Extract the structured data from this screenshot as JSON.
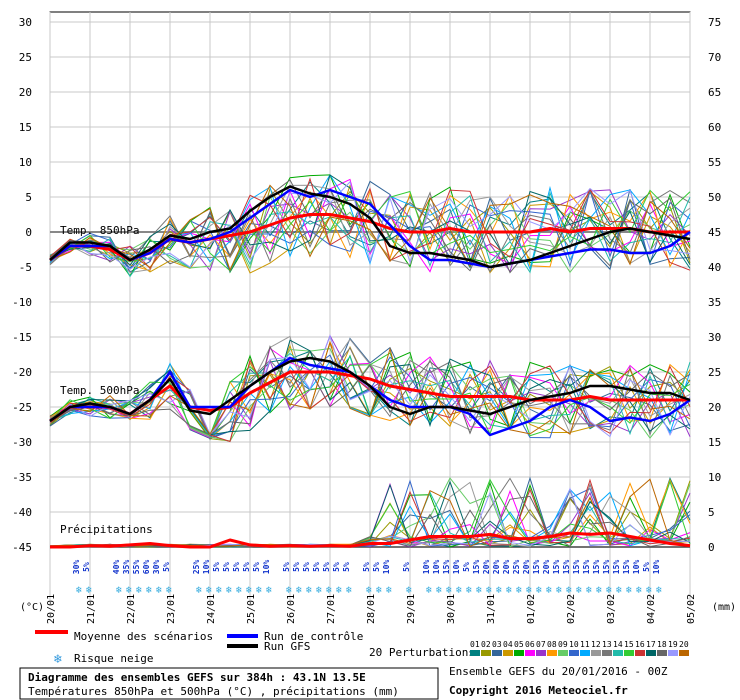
{
  "chart_data": {
    "type": "line",
    "title": "Diagramme des ensembles GEFS sur 384h : 43.1N 13.5E",
    "subtitle": "Températures 850hPa et 500hPa (°C) , précipitations (mm)",
    "run_info": "Ensemble GEFS du 20/01/2016 - 00Z",
    "copyright": "Copyright 2016 Meteociel.fr",
    "xlabel": "(°C)",
    "y2label": "(mm)",
    "x_ticks": [
      "20/01",
      "21/01",
      "22/01",
      "23/01",
      "24/01",
      "25/01",
      "26/01",
      "27/01",
      "28/01",
      "29/01",
      "30/01",
      "31/01",
      "01/02",
      "02/02",
      "03/02",
      "04/02",
      "05/02"
    ],
    "y_left_ticks": [
      "30",
      "25",
      "20",
      "15",
      "10",
      "5",
      "0",
      "-5",
      "-10",
      "-15",
      "-20",
      "-25",
      "-30",
      "-35",
      "-40",
      "-45"
    ],
    "y_right_ticks": [
      "75",
      "70",
      "65",
      "60",
      "55",
      "50",
      "45",
      "40",
      "35",
      "30",
      "25",
      "20",
      "15",
      "10",
      "5",
      "0"
    ],
    "ylim": [
      -45,
      30
    ],
    "y2lim": [
      0,
      75
    ],
    "panel_labels": {
      "t850": "Temp. 850hPa",
      "t500": "Temp. 500hPa",
      "precip": "Précipitations"
    },
    "snow_risk_percent": [
      "30%",
      "5%",
      "40%",
      "35%",
      "55%",
      "60%",
      "30%",
      "5%",
      "25%",
      "10%",
      "5%",
      "5%",
      "5%",
      "5%",
      "5%",
      "10%",
      "5%",
      "5%",
      "5%",
      "5%",
      "5%",
      "5%",
      "5%",
      "5%",
      "5%",
      "10%",
      "5%",
      "10%",
      "10%",
      "15%",
      "10%",
      "5%",
      "15%",
      "20%",
      "20%",
      "20%",
      "25%",
      "20%",
      "15%",
      "20%",
      "15%",
      "15%",
      "15%",
      "15%",
      "15%",
      "15%",
      "15%",
      "15%",
      "10%",
      "5%",
      "10%"
    ],
    "legend": {
      "mean": "Moyenne des scénarios",
      "control": "Run de contrôle",
      "gfs": "Run GFS",
      "snow": "Risque neige",
      "perturbations": "20 Perturbations",
      "perturbation_ids": [
        "01",
        "02",
        "03",
        "04",
        "05",
        "06",
        "07",
        "08",
        "09",
        "10",
        "11",
        "12",
        "13",
        "14",
        "15",
        "16",
        "17",
        "18",
        "19",
        "20"
      ]
    },
    "series": [
      {
        "name": "Moyenne des scénarios (T850)",
        "color": "#ff0000",
        "x": [
          0,
          0.5,
          1,
          1.5,
          2,
          2.5,
          3,
          3.5,
          4,
          4.5,
          5,
          5.5,
          6,
          6.5,
          7,
          7.5,
          8,
          8.5,
          9,
          9.5,
          10,
          10.5,
          11,
          11.5,
          12,
          12.5,
          13,
          13.5,
          14,
          14.5,
          15,
          15.5,
          16
        ],
        "values": [
          -4,
          -2,
          -2,
          -2.5,
          -4,
          -3,
          -1,
          -1.5,
          -1,
          -0.5,
          0,
          1,
          2,
          2.5,
          2.5,
          2,
          1.5,
          0.5,
          0,
          0,
          0.5,
          0,
          0,
          0,
          0,
          0.5,
          0,
          0.5,
          0.5,
          0.5,
          0,
          0,
          0
        ]
      },
      {
        "name": "Run de contrôle (T850)",
        "color": "#0000ff",
        "x": [
          0,
          0.5,
          1,
          1.5,
          2,
          2.5,
          3,
          3.5,
          4,
          4.5,
          5,
          5.5,
          6,
          6.5,
          7,
          7.5,
          8,
          8.5,
          9,
          9.5,
          10,
          10.5,
          11,
          11.5,
          12,
          12.5,
          13,
          13.5,
          14,
          14.5,
          15,
          15.5,
          16
        ],
        "values": [
          -4,
          -2,
          -2,
          -2,
          -4,
          -3,
          -1,
          -1.5,
          -1,
          0,
          2,
          4,
          6,
          5,
          6,
          5,
          4,
          1,
          -2,
          -4,
          -4,
          -4.5,
          -5,
          -4.5,
          -4,
          -3.5,
          -3,
          -2.5,
          -2.5,
          -3,
          -3,
          -2,
          0
        ]
      },
      {
        "name": "Run GFS (T850)",
        "color": "#000000",
        "x": [
          0,
          0.5,
          1,
          1.5,
          2,
          2.5,
          3,
          3.5,
          4,
          4.5,
          5,
          5.5,
          6,
          6.5,
          7,
          7.5,
          8,
          8.5,
          9,
          9.5,
          10,
          10.5,
          11,
          11.5,
          12,
          12.5,
          13,
          13.5,
          14,
          14.5,
          15,
          15.5,
          16
        ],
        "values": [
          -4,
          -1.5,
          -1.5,
          -2,
          -4,
          -2.5,
          -0.5,
          -1,
          0,
          0.5,
          3,
          5,
          6.5,
          5.5,
          5,
          4,
          2,
          -2,
          -3,
          -3,
          -3.5,
          -4,
          -5,
          -4.5,
          -4,
          -3,
          -2,
          -1,
          0,
          0.5,
          0,
          -0.5,
          -1
        ]
      },
      {
        "name": "Moyenne des scénarios (T500)",
        "color": "#ff0000",
        "x": [
          0,
          0.5,
          1,
          1.5,
          2,
          2.5,
          3,
          3.5,
          4,
          4.5,
          5,
          5.5,
          6,
          6.5,
          7,
          7.5,
          8,
          8.5,
          9,
          9.5,
          10,
          10.5,
          11,
          11.5,
          12,
          12.5,
          13,
          13.5,
          14,
          14.5,
          15,
          15.5,
          16
        ],
        "values": [
          -27,
          -25,
          -25,
          -25,
          -26,
          -24,
          -22,
          -25,
          -25.5,
          -25,
          -23,
          -21.5,
          -20,
          -20,
          -20,
          -20.5,
          -21,
          -22,
          -22.5,
          -23,
          -23.5,
          -23.5,
          -23.5,
          -23.5,
          -24,
          -24,
          -24,
          -23.5,
          -24,
          -24,
          -24,
          -24,
          -24
        ]
      },
      {
        "name": "Run de contrôle (T500)",
        "color": "#0000ff",
        "x": [
          0,
          0.5,
          1,
          1.5,
          2,
          2.5,
          3,
          3.5,
          4,
          4.5,
          5,
          5.5,
          6,
          6.5,
          7,
          7.5,
          8,
          8.5,
          9,
          9.5,
          10,
          10.5,
          11,
          11.5,
          12,
          12.5,
          13,
          13.5,
          14,
          14.5,
          15,
          15.5,
          16
        ],
        "values": [
          -27,
          -25,
          -25,
          -25,
          -26,
          -24,
          -20,
          -25,
          -25,
          -25,
          -22,
          -20,
          -18,
          -19,
          -19.5,
          -20,
          -22,
          -24,
          -25,
          -25,
          -25,
          -26,
          -29,
          -28,
          -27,
          -25,
          -24,
          -25,
          -27,
          -26.5,
          -27,
          -26,
          -24
        ]
      },
      {
        "name": "Run GFS (T500)",
        "color": "#000000",
        "x": [
          0,
          0.5,
          1,
          1.5,
          2,
          2.5,
          3,
          3.5,
          4,
          4.5,
          5,
          5.5,
          6,
          6.5,
          7,
          7.5,
          8,
          8.5,
          9,
          9.5,
          10,
          10.5,
          11,
          11.5,
          12,
          12.5,
          13,
          13.5,
          14,
          14.5,
          15,
          15.5,
          16
        ],
        "values": [
          -27,
          -25,
          -24.5,
          -25,
          -26,
          -24,
          -21,
          -25.5,
          -26,
          -24,
          -22,
          -20,
          -18.5,
          -18,
          -18.5,
          -20,
          -22,
          -25,
          -26,
          -25,
          -25,
          -25.5,
          -26,
          -25,
          -24,
          -23.5,
          -23,
          -22,
          -22,
          -22.5,
          -23,
          -23,
          -24
        ]
      },
      {
        "name": "Moyenne des scénarios (Précipitations)",
        "color": "#ff0000",
        "x": [
          0,
          0.5,
          1,
          1.5,
          2,
          2.5,
          3,
          3.5,
          4,
          4.5,
          5,
          5.5,
          6,
          6.5,
          7,
          7.5,
          8,
          8.5,
          9,
          9.5,
          10,
          10.5,
          11,
          11.5,
          12,
          12.5,
          13,
          13.5,
          14,
          14.5,
          15,
          15.5,
          16
        ],
        "values": [
          0,
          0,
          0.2,
          0.1,
          0.3,
          0.5,
          0.2,
          0,
          0,
          1,
          0.3,
          0.1,
          0.2,
          0.1,
          0.2,
          0.1,
          0.5,
          0.5,
          1,
          1.5,
          1.5,
          1.5,
          1.8,
          1.2,
          1.2,
          1.5,
          2,
          1.8,
          2,
          1.5,
          1,
          0.5,
          0.2
        ]
      }
    ]
  }
}
